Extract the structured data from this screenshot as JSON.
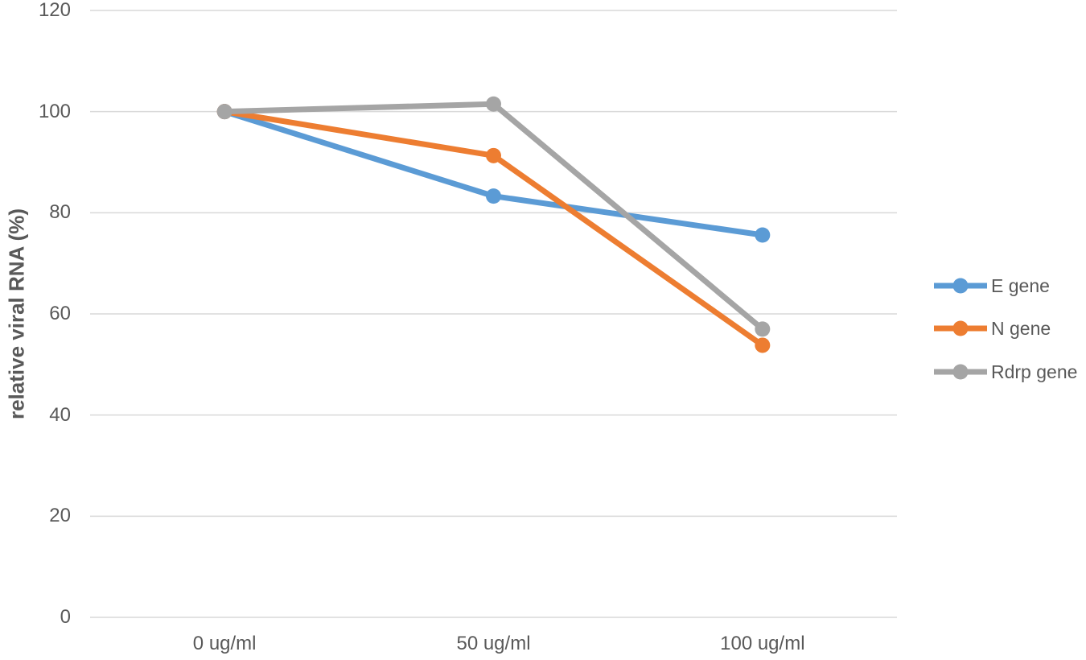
{
  "chart_data": {
    "type": "line",
    "title": "",
    "xlabel": "",
    "ylabel": "relative viral RNA (%)",
    "categories": [
      "0 ug/ml",
      "50 ug/ml",
      "100 ug/ml"
    ],
    "series": [
      {
        "name": "E gene",
        "color": "#5B9BD5",
        "values": [
          100,
          83.3,
          75.6
        ]
      },
      {
        "name": "N gene",
        "color": "#ED7D31",
        "values": [
          100,
          91.3,
          53.8
        ]
      },
      {
        "name": "Rdrp gene",
        "color": "#A5A5A5",
        "values": [
          100,
          101.5,
          57.0
        ]
      }
    ],
    "ylim": [
      0,
      120
    ],
    "yticks": [
      0,
      20,
      40,
      60,
      80,
      100,
      120
    ],
    "grid": true,
    "gridline_color": "#D9D9D9",
    "text_color": "#595959",
    "legend_position": "right"
  }
}
